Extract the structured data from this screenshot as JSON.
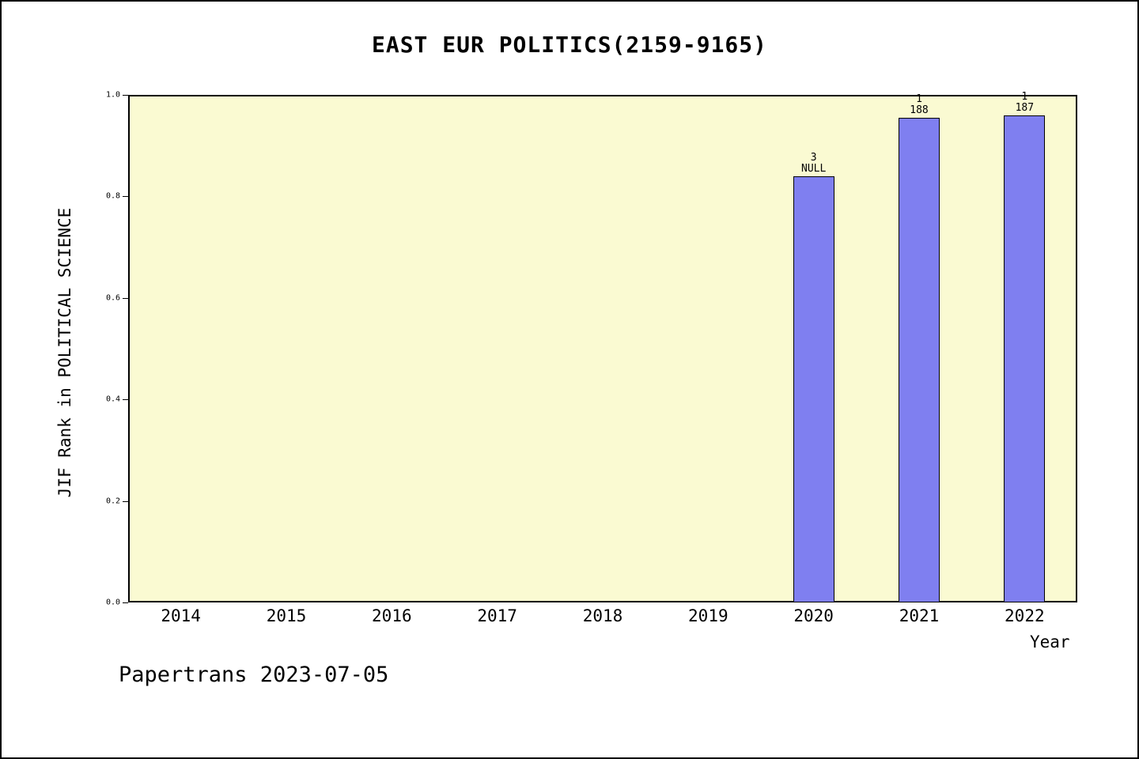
{
  "title": "EAST EUR POLITICS(2159-9165)",
  "footer": "Papertrans 2023-07-05",
  "chart_data": {
    "type": "bar",
    "title": "EAST EUR POLITICS(2159-9165)",
    "xlabel": "Year",
    "ylabel": "JIF Rank in POLITICAL SCIENCE",
    "ylim": [
      0.0,
      1.0
    ],
    "yticks": [
      "0.0",
      "0.2",
      "0.4",
      "0.6",
      "0.8",
      "1.0"
    ],
    "grid": false,
    "legend": "none",
    "categories": [
      "2014",
      "2015",
      "2016",
      "2017",
      "2018",
      "2019",
      "2020",
      "2021",
      "2022"
    ],
    "values": [
      null,
      null,
      null,
      null,
      null,
      null,
      0.84,
      0.955,
      0.96
    ],
    "bar_annotations": [
      {
        "category": "2020",
        "line1": "3",
        "line2": "NULL"
      },
      {
        "category": "2021",
        "line1": "1",
        "line2": "188"
      },
      {
        "category": "2022",
        "line1": "1",
        "line2": "187"
      }
    ],
    "colors": {
      "bar_fill": "#7F7FF0",
      "bar_border": "#000000",
      "plot_background": "#FAFAD2",
      "frame_border": "#000000"
    }
  }
}
